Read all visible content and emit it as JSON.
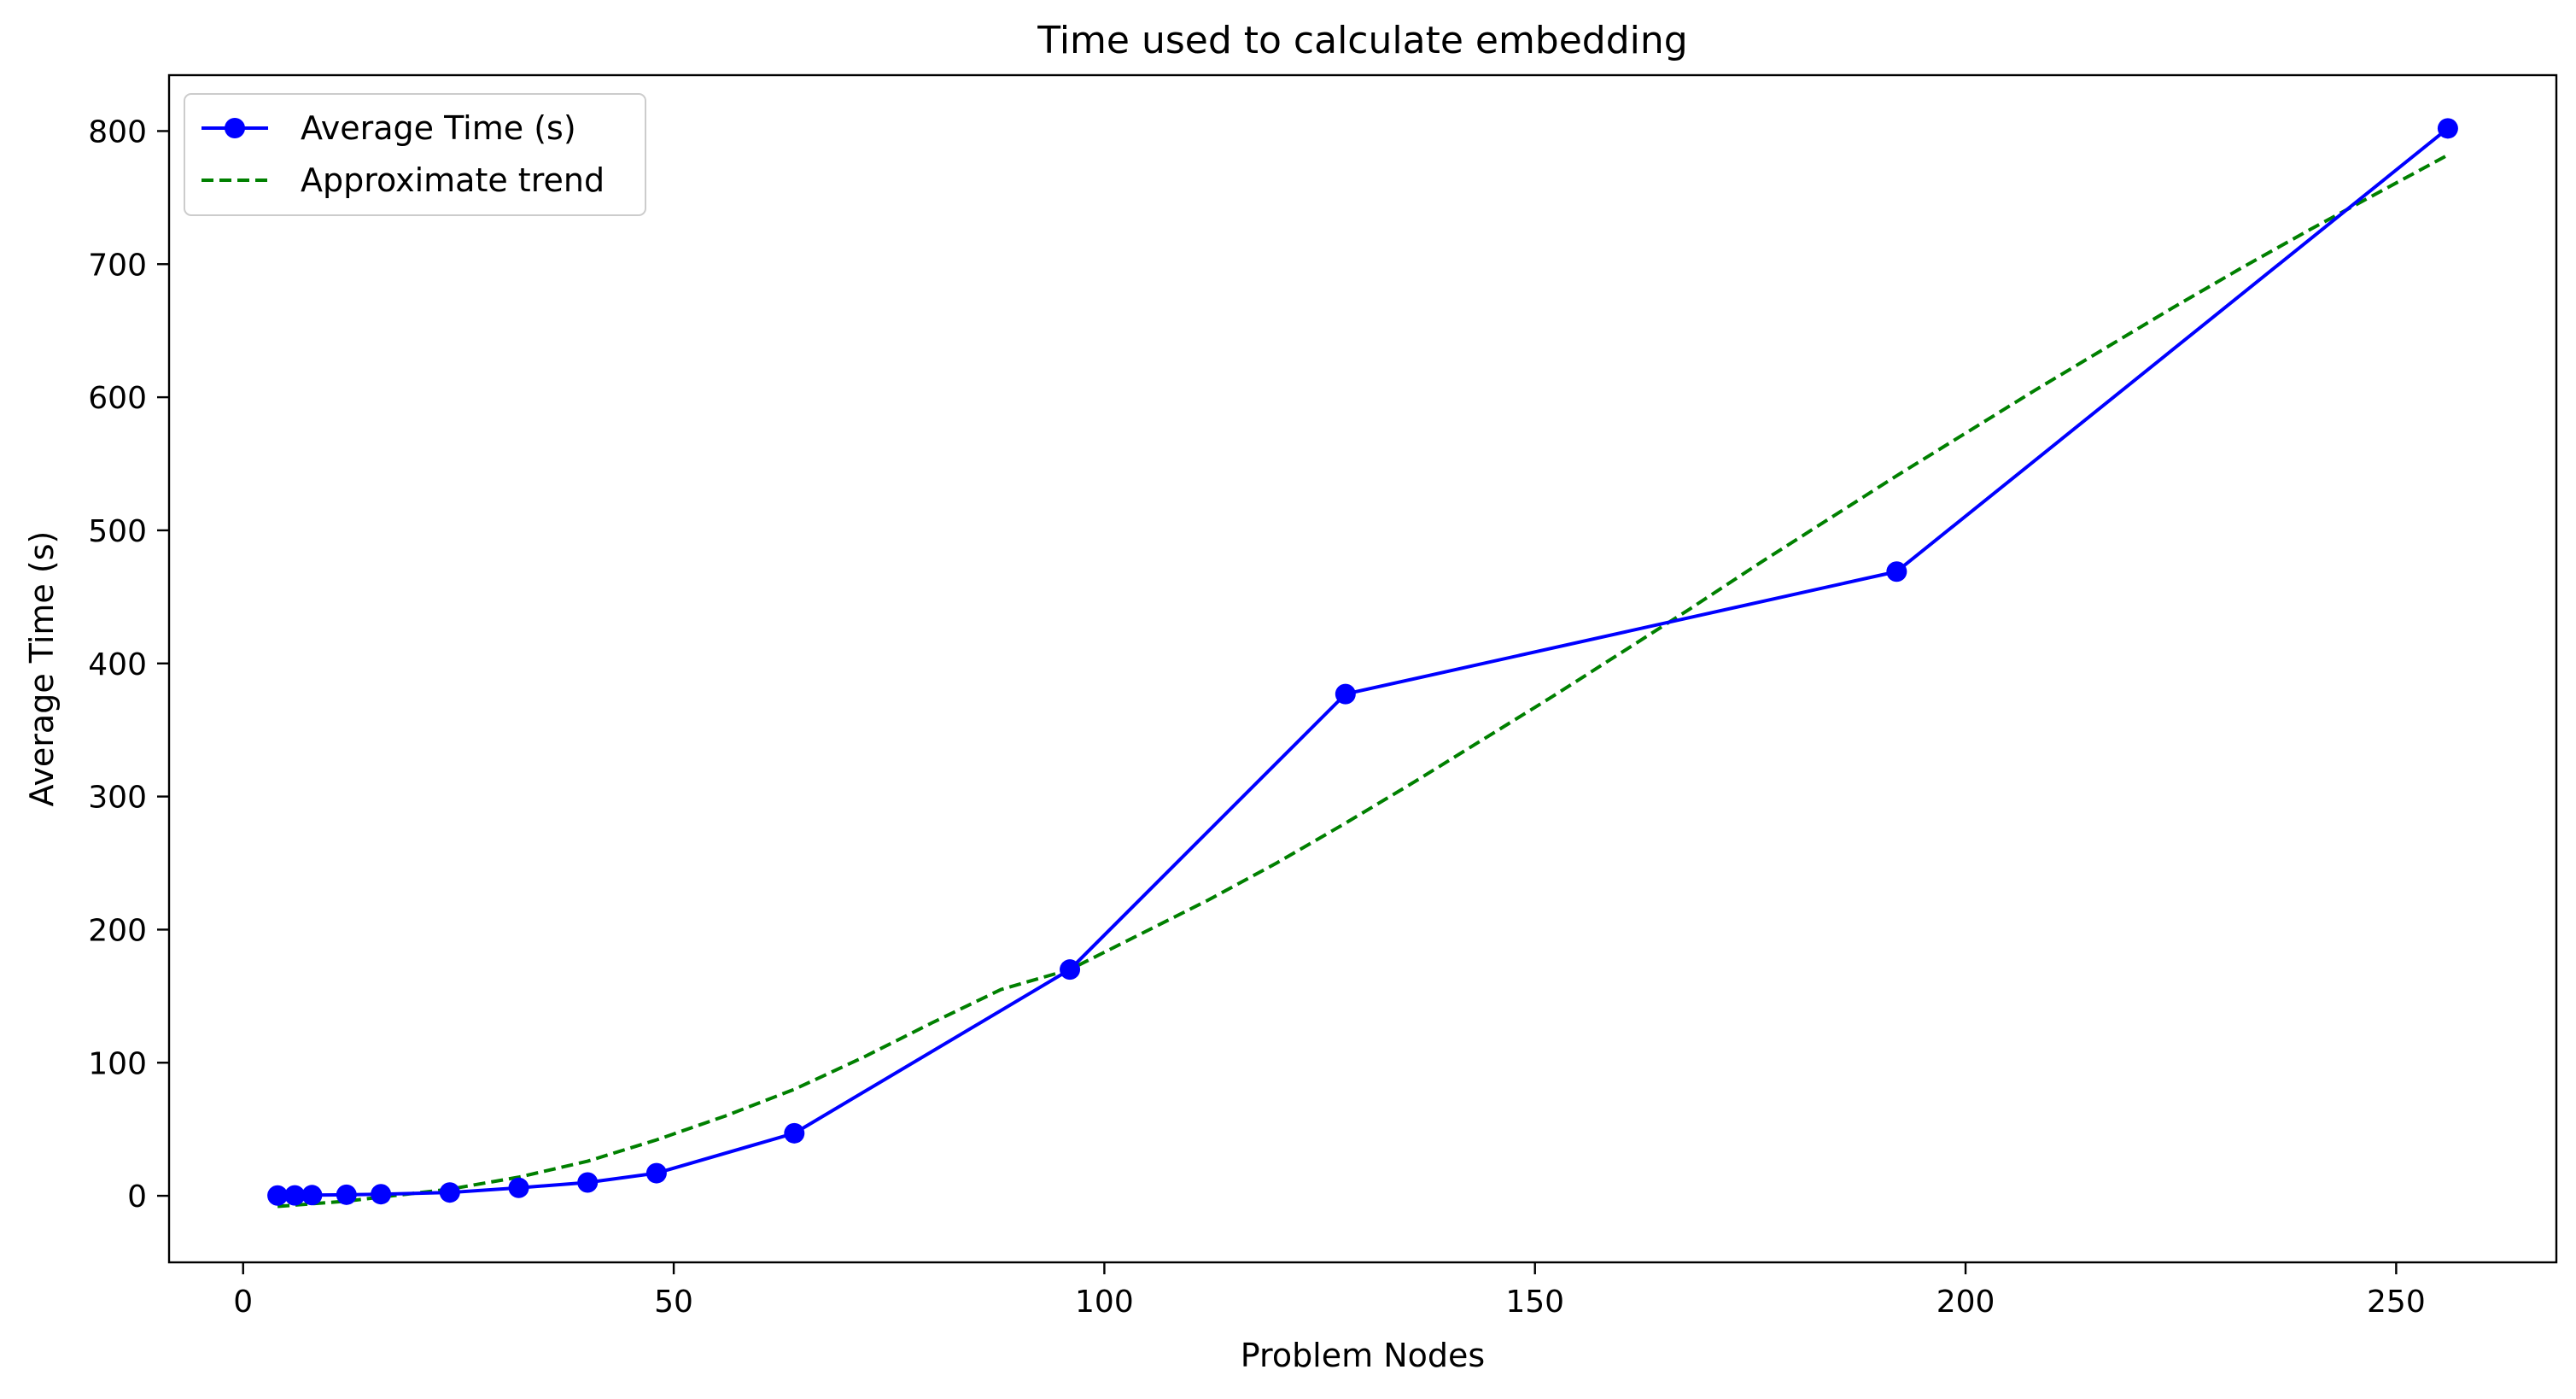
{
  "chart_data": {
    "type": "line",
    "title": "Time used to calculate embedding",
    "xlabel": "Problem Nodes",
    "ylabel": "Average Time (s)",
    "xlim": [
      -8.6,
      268.6
    ],
    "ylim": [
      -50,
      842
    ],
    "xticks": [
      0,
      50,
      100,
      150,
      200,
      250
    ],
    "yticks": [
      0,
      100,
      200,
      300,
      400,
      500,
      600,
      700,
      800
    ],
    "grid": false,
    "legend_position": "upper-left",
    "series": [
      {
        "name": "Average Time (s)",
        "style": "solid-with-markers",
        "color": "#0000ff",
        "x": [
          4,
          6,
          8,
          12,
          16,
          24,
          32,
          40,
          48,
          64,
          96,
          128,
          192,
          256
        ],
        "y": [
          0.2,
          0.3,
          0.5,
          0.8,
          1.2,
          2.5,
          6,
          10,
          17,
          47,
          170,
          377,
          469,
          802
        ]
      },
      {
        "name": "Approximate trend",
        "style": "dashed",
        "color": "#008000",
        "x": [
          4,
          8,
          12,
          16,
          20,
          24,
          32,
          40,
          48,
          56,
          64,
          72,
          80,
          88,
          96,
          104,
          112,
          120,
          128,
          136,
          144,
          152,
          160,
          168,
          176,
          184,
          192,
          200,
          208,
          216,
          224,
          232,
          240,
          248,
          256
        ],
        "y": [
          -8,
          -6,
          -4,
          -1,
          2,
          5,
          14,
          26,
          42,
          60,
          80,
          104,
          130,
          155,
          170,
          196,
          222,
          250,
          280,
          311,
          343,
          375,
          408,
          441,
          475,
          508,
          541,
          573,
          605,
          636,
          667,
          697,
          726,
          754,
          782
        ]
      }
    ]
  }
}
